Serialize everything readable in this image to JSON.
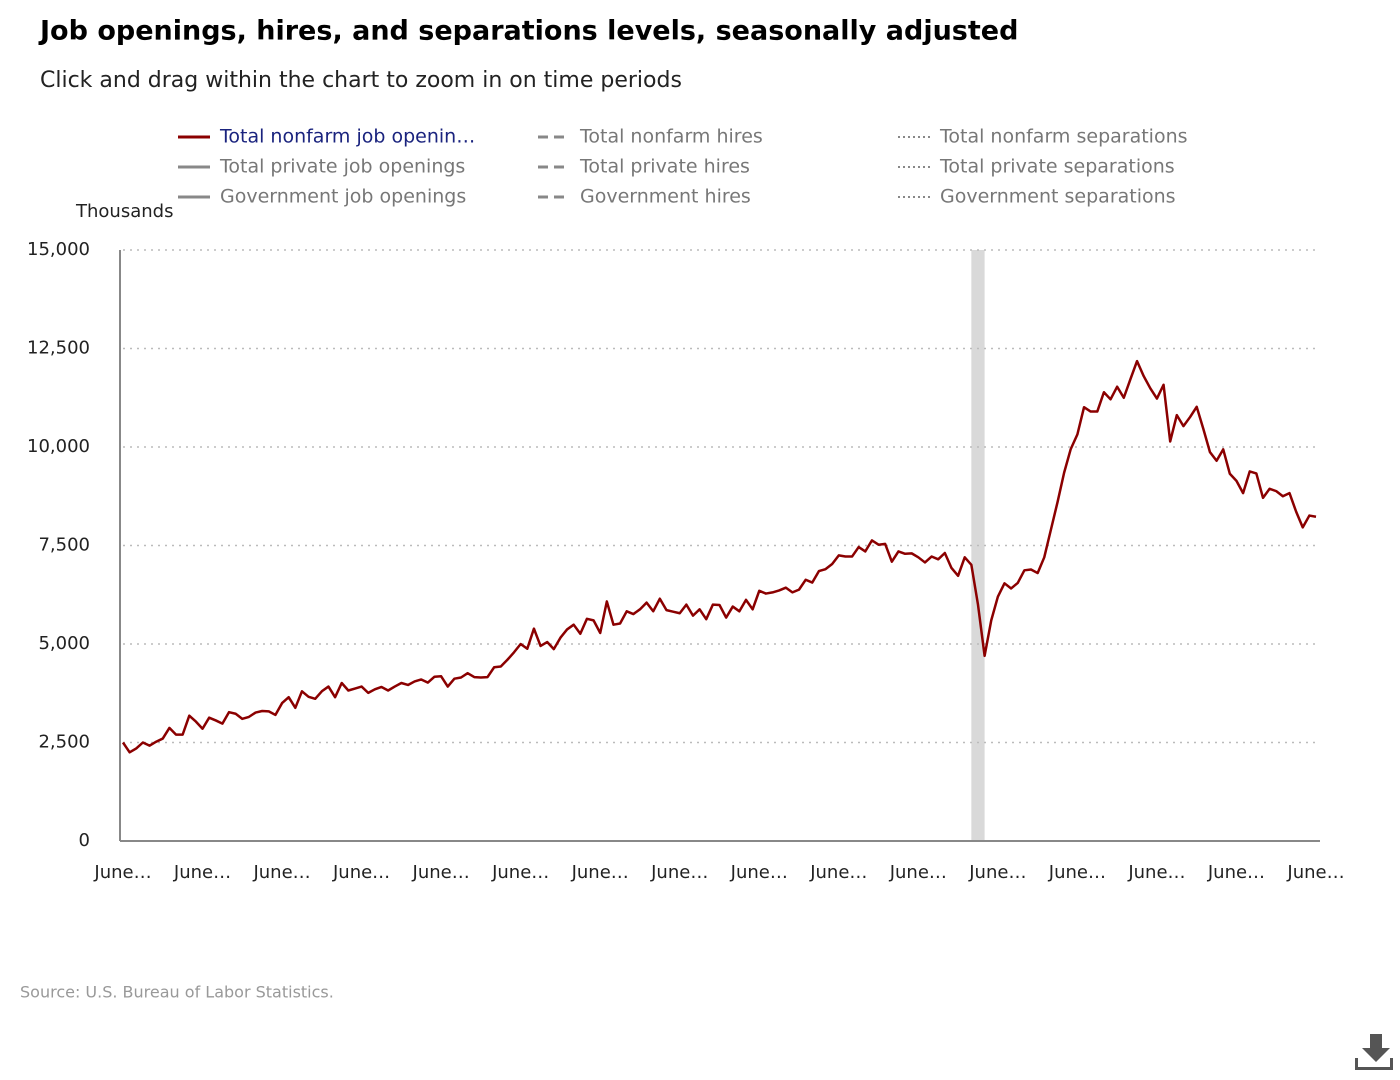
{
  "chart_data": {
    "type": "line",
    "title": "Job openings, hires, and separations levels, seasonally adjusted",
    "subtitle": "Click and drag within the chart to zoom in on time periods",
    "y_axis_label": "Thousands",
    "source": "Source: U.S. Bureau of Labor Statistics.",
    "ylim": [
      0,
      15000
    ],
    "yticks": [
      0,
      {
        "value": 2500,
        "label": "2,500"
      },
      {
        "value": 5000,
        "label": "5,000"
      },
      {
        "value": 7500,
        "label": "7,500"
      },
      {
        "value": 10000,
        "label": "10,000"
      },
      {
        "value": 12500,
        "label": "12,500"
      },
      {
        "value": 15000,
        "label": "15,000"
      }
    ],
    "grid": true,
    "shaded_periods": [
      [
        128,
        130
      ]
    ],
    "categories": [
      "June…",
      null,
      null,
      null,
      null,
      null,
      null,
      null,
      null,
      null,
      null,
      null,
      "June…",
      null,
      null,
      null,
      null,
      null,
      null,
      null,
      null,
      null,
      null,
      null,
      "June…",
      null,
      null,
      null,
      null,
      null,
      null,
      null,
      null,
      null,
      null,
      null,
      "June…",
      null,
      null,
      null,
      null,
      null,
      null,
      null,
      null,
      null,
      null,
      null,
      "June…",
      null,
      null,
      null,
      null,
      null,
      null,
      null,
      null,
      null,
      null,
      null,
      "June…",
      null,
      null,
      null,
      null,
      null,
      null,
      null,
      null,
      null,
      null,
      null,
      "June…",
      null,
      null,
      null,
      null,
      null,
      null,
      null,
      null,
      null,
      null,
      null,
      "June…",
      null,
      null,
      null,
      null,
      null,
      null,
      null,
      null,
      null,
      null,
      null,
      "June…",
      null,
      null,
      null,
      null,
      null,
      null,
      null,
      null,
      null,
      null,
      null,
      "June…",
      null,
      null,
      null,
      null,
      null,
      null,
      null,
      null,
      null,
      null,
      null,
      "June…",
      null,
      null,
      null,
      null,
      null,
      null,
      null,
      null,
      null,
      null,
      null,
      "June…",
      null,
      null,
      null,
      null,
      null,
      null,
      null,
      null,
      null,
      null,
      null,
      "June…",
      null,
      null,
      null,
      null,
      null,
      null,
      null,
      null,
      null,
      null,
      null,
      "June…",
      null,
      null,
      null,
      null,
      null,
      null,
      null,
      null,
      null,
      null,
      null,
      "June…",
      null,
      null,
      null,
      null,
      null,
      null,
      null,
      null,
      null,
      null,
      null,
      "June…"
    ],
    "series": [
      {
        "name": "Total nonfarm job openin…",
        "color": "#8b0000",
        "dash": "solid",
        "visible": true,
        "values": [
          2500,
          2250,
          2350,
          2500,
          2420,
          2520,
          2600,
          2870,
          2700,
          2700,
          3180,
          3030,
          2850,
          3130,
          3060,
          2980,
          3270,
          3230,
          3100,
          3150,
          3260,
          3300,
          3290,
          3200,
          3500,
          3650,
          3380,
          3800,
          3660,
          3610,
          3800,
          3920,
          3650,
          4010,
          3820,
          3870,
          3920,
          3760,
          3850,
          3910,
          3820,
          3920,
          4010,
          3960,
          4050,
          4100,
          4020,
          4170,
          4180,
          3920,
          4120,
          4150,
          4260,
          4160,
          4150,
          4160,
          4410,
          4430,
          4600,
          4790,
          5000,
          4880,
          5390,
          4950,
          5050,
          4870,
          5160,
          5370,
          5490,
          5260,
          5640,
          5600,
          5280,
          6080,
          5490,
          5520,
          5830,
          5760,
          5880,
          6050,
          5830,
          6150,
          5860,
          5820,
          5780,
          6000,
          5720,
          5880,
          5630,
          6000,
          5990,
          5670,
          5950,
          5830,
          6120,
          5880,
          6350,
          6280,
          6310,
          6360,
          6430,
          6310,
          6380,
          6630,
          6560,
          6850,
          6900,
          7030,
          7250,
          7220,
          7220,
          7460,
          7350,
          7630,
          7520,
          7540,
          7090,
          7350,
          7290,
          7300,
          7200,
          7070,
          7220,
          7150,
          7310,
          6930,
          6730,
          7200,
          7010,
          6000,
          4700,
          5600,
          6200,
          6540,
          6410,
          6550,
          6870,
          6890,
          6800,
          7200,
          7900,
          8600,
          9350,
          9950,
          10320,
          11010,
          10900,
          10900,
          11390,
          11210,
          11530,
          11250,
          11720,
          12180,
          11800,
          11490,
          11230,
          11580,
          10140,
          10810,
          10530,
          10760,
          11020,
          10460,
          9870,
          9650,
          9940,
          9320,
          9140,
          8830,
          9380,
          9330,
          8710,
          8940,
          8880,
          8750,
          8830,
          8360,
          7960,
          8260,
          8230
        ]
      },
      {
        "name": "Total private job openings",
        "color": "#888888",
        "dash": "solid",
        "visible": false
      },
      {
        "name": "Government job openings",
        "color": "#888888",
        "dash": "solid",
        "visible": false
      },
      {
        "name": "Total nonfarm hires",
        "color": "#888888",
        "dash": "dashed",
        "visible": false
      },
      {
        "name": "Total private hires",
        "color": "#888888",
        "dash": "dashed",
        "visible": false
      },
      {
        "name": "Government hires",
        "color": "#888888",
        "dash": "dashed",
        "visible": false
      },
      {
        "name": "Total nonfarm separations",
        "color": "#888888",
        "dash": "dotted",
        "visible": false
      },
      {
        "name": "Total private separations",
        "color": "#888888",
        "dash": "dotted",
        "visible": false
      },
      {
        "name": "Government separations",
        "color": "#888888",
        "dash": "dotted",
        "visible": false
      }
    ]
  }
}
